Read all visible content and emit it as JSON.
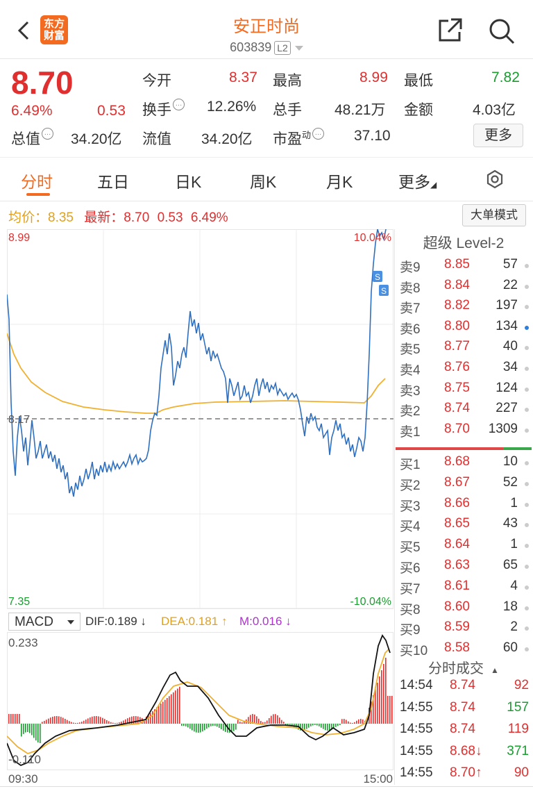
{
  "header": {
    "title": "安正时尚",
    "code": "603839",
    "level_badge": "L2",
    "logo_line1": "东方",
    "logo_line2": "财富"
  },
  "quote": {
    "price": "8.70",
    "change_pct": "6.49%",
    "change": "0.53",
    "open_label": "今开",
    "open": "8.37",
    "high_label": "最高",
    "high": "8.99",
    "low_label": "最低",
    "low": "7.82",
    "turnover_label": "换手",
    "turnover": "12.26%",
    "volume_label": "总手",
    "volume": "48.21万",
    "amount_label": "金额",
    "amount": "4.03亿",
    "mktcap_label": "总值",
    "mktcap": "34.20亿",
    "float_label": "流值",
    "float_cap": "34.20亿",
    "pe_label": "市盈",
    "pe_sup": "动",
    "pe": "37.10",
    "more_label": "更多"
  },
  "tabs": [
    "分时",
    "五日",
    "日K",
    "周K",
    "月K",
    "更多"
  ],
  "chart": {
    "avg_label": "均价：",
    "avg": "8.35",
    "latest_label": "最新：",
    "latest": "8.70",
    "latest_change": "0.53",
    "latest_pct": "6.49%",
    "big_order_mode": "大单模式",
    "y_top": "8.99",
    "y_mid": "8.17",
    "y_bottom": "7.35",
    "pct_top": "10.04%",
    "pct_bottom": "-10.04%",
    "signal_marker": "S"
  },
  "macd": {
    "indicator": "MACD",
    "dif": "DIF:0.189 ↓",
    "dea": "DEA:0.181 ↑",
    "m": "M:0.016 ↓",
    "y_top": "0.233",
    "y_bottom": "-0.110",
    "time_start": "09:30",
    "time_end": "15:00"
  },
  "order_book": {
    "title": "超级 Level-2",
    "asks": [
      {
        "label": "卖9",
        "price": "8.85",
        "vol": "57"
      },
      {
        "label": "卖8",
        "price": "8.84",
        "vol": "22"
      },
      {
        "label": "卖7",
        "price": "8.82",
        "vol": "197"
      },
      {
        "label": "卖6",
        "price": "8.80",
        "vol": "134"
      },
      {
        "label": "卖5",
        "price": "8.77",
        "vol": "40"
      },
      {
        "label": "卖4",
        "price": "8.76",
        "vol": "34"
      },
      {
        "label": "卖3",
        "price": "8.75",
        "vol": "124"
      },
      {
        "label": "卖2",
        "price": "8.74",
        "vol": "227"
      },
      {
        "label": "卖1",
        "price": "8.70",
        "vol": "1309"
      }
    ],
    "bids": [
      {
        "label": "买1",
        "price": "8.68",
        "vol": "10"
      },
      {
        "label": "买2",
        "price": "8.67",
        "vol": "52"
      },
      {
        "label": "买3",
        "price": "8.66",
        "vol": "1"
      },
      {
        "label": "买4",
        "price": "8.65",
        "vol": "43"
      },
      {
        "label": "买5",
        "price": "8.64",
        "vol": "1"
      },
      {
        "label": "买6",
        "price": "8.63",
        "vol": "65"
      },
      {
        "label": "买7",
        "price": "8.61",
        "vol": "4"
      },
      {
        "label": "买8",
        "price": "8.60",
        "vol": "18"
      },
      {
        "label": "买9",
        "price": "8.59",
        "vol": "2"
      },
      {
        "label": "买10",
        "price": "8.58",
        "vol": "60"
      }
    ]
  },
  "trades": {
    "title": "分时成交",
    "rows": [
      {
        "time": "14:54",
        "price": "8.74",
        "vol": "92",
        "side": "buy"
      },
      {
        "time": "14:55",
        "price": "8.74",
        "vol": "157",
        "side": "sell"
      },
      {
        "time": "14:55",
        "price": "8.74",
        "vol": "119",
        "side": "buy"
      },
      {
        "time": "14:55",
        "price": "8.68↓",
        "vol": "371",
        "side": "sell"
      },
      {
        "time": "14:55",
        "price": "8.70↑",
        "vol": "90",
        "side": "buy"
      }
    ]
  },
  "colors": {
    "accent": "#f26b21",
    "up": "#e02f2f",
    "down": "#1a9c2f",
    "price_line": "#2f6fbf",
    "avg_line": "#f0b030",
    "dea": "#f0b030",
    "m": "#b030d0"
  }
}
